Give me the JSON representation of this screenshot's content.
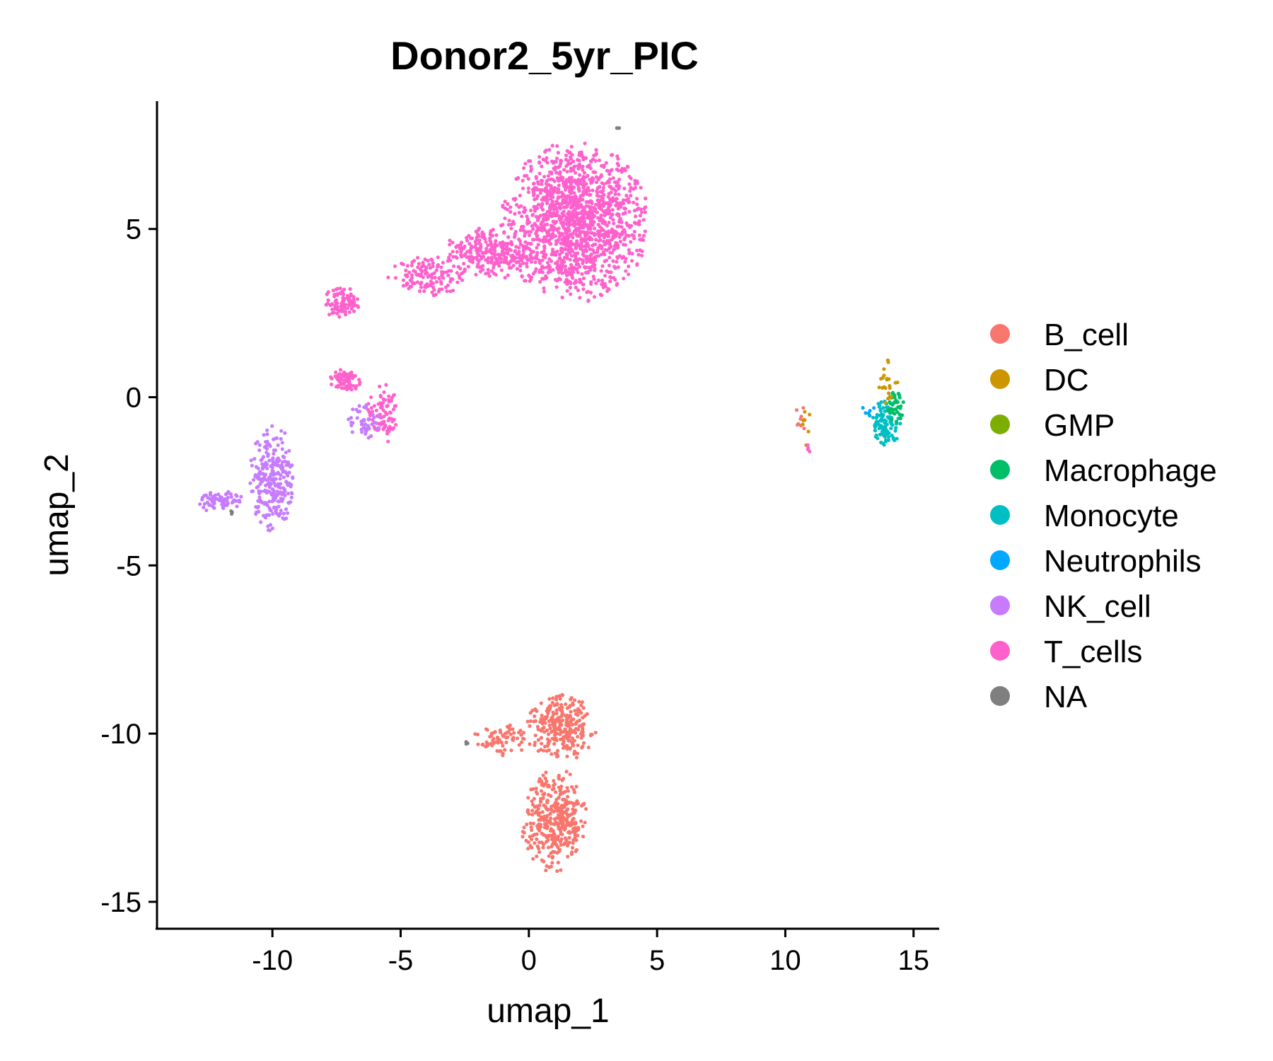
{
  "chart_data": {
    "type": "scatter",
    "title": "Donor2_5yr_PIC",
    "xlabel": "umap_1",
    "ylabel": "umap_2",
    "xlim": [
      -14.5,
      16.0
    ],
    "ylim": [
      -15.8,
      8.8
    ],
    "xticks": [
      -10,
      -5,
      0,
      5,
      10,
      15
    ],
    "yticks": [
      5,
      0,
      -5,
      -10,
      -15
    ],
    "xtick_labels": [
      "-10",
      "-5",
      "0",
      "5",
      "10",
      "15"
    ],
    "ytick_labels": [
      "5",
      "0",
      "-5",
      "-10",
      "-15"
    ],
    "grid": false,
    "legend_position": "right",
    "legend": [
      {
        "name": "B_cell",
        "color": "#F8766D"
      },
      {
        "name": "DC",
        "color": "#CD9600"
      },
      {
        "name": "GMP",
        "color": "#7CAE00"
      },
      {
        "name": "Macrophage",
        "color": "#00BE67"
      },
      {
        "name": "Monocyte",
        "color": "#00BFC4"
      },
      {
        "name": "Neutrophils",
        "color": "#00A9FF"
      },
      {
        "name": "NK_cell",
        "color": "#C77CFF"
      },
      {
        "name": "T_cells",
        "color": "#FF61CC"
      },
      {
        "name": "NA",
        "color": "#7F7F7F"
      }
    ],
    "clusters": [
      {
        "label": "T_cells",
        "cx": 1.8,
        "cy": 5.2,
        "rx": 2.9,
        "ry": 2.4,
        "n": 1400
      },
      {
        "label": "T_cells",
        "cx": -1.5,
        "cy": 4.3,
        "rx": 1.8,
        "ry": 0.8,
        "n": 260
      },
      {
        "label": "T_cells",
        "cx": -4.0,
        "cy": 3.6,
        "rx": 1.5,
        "ry": 0.6,
        "n": 130
      },
      {
        "label": "T_cells",
        "cx": -7.3,
        "cy": 2.8,
        "rx": 0.7,
        "ry": 0.5,
        "n": 90
      },
      {
        "label": "T_cells",
        "cx": -7.2,
        "cy": 0.5,
        "rx": 0.7,
        "ry": 0.4,
        "n": 70
      },
      {
        "label": "T_cells",
        "cx": -5.7,
        "cy": -0.5,
        "rx": 0.6,
        "ry": 0.9,
        "n": 80
      },
      {
        "label": "NK_cell",
        "cx": -6.4,
        "cy": -0.7,
        "rx": 0.7,
        "ry": 0.6,
        "n": 45
      },
      {
        "label": "NK_cell",
        "cx": -10.0,
        "cy": -2.4,
        "rx": 0.9,
        "ry": 1.6,
        "n": 260
      },
      {
        "label": "NK_cell",
        "cx": -12.0,
        "cy": -3.1,
        "rx": 0.9,
        "ry": 0.35,
        "n": 70
      },
      {
        "label": "B_cell",
        "cx": 1.3,
        "cy": -9.8,
        "rx": 1.4,
        "ry": 1.0,
        "n": 260
      },
      {
        "label": "B_cell",
        "cx": 1.0,
        "cy": -12.6,
        "rx": 1.3,
        "ry": 1.6,
        "n": 360
      },
      {
        "label": "B_cell",
        "cx": -1.0,
        "cy": -10.2,
        "rx": 1.2,
        "ry": 0.5,
        "n": 70
      },
      {
        "label": "B_cell",
        "cx": 10.6,
        "cy": -0.6,
        "rx": 0.2,
        "ry": 0.5,
        "n": 8
      },
      {
        "label": "DC",
        "cx": 10.8,
        "cy": -0.9,
        "rx": 0.2,
        "ry": 0.6,
        "n": 8
      },
      {
        "label": "T_cells",
        "cx": 10.9,
        "cy": -1.5,
        "rx": 0.1,
        "ry": 0.2,
        "n": 4
      },
      {
        "label": "Monocyte",
        "cx": 13.9,
        "cy": -0.8,
        "rx": 0.6,
        "ry": 0.7,
        "n": 95
      },
      {
        "label": "Macrophage",
        "cx": 14.3,
        "cy": -0.3,
        "rx": 0.35,
        "ry": 0.5,
        "n": 40
      },
      {
        "label": "DC",
        "cx": 14.0,
        "cy": 0.4,
        "rx": 0.4,
        "ry": 0.7,
        "n": 22
      },
      {
        "label": "Neutrophils",
        "cx": 13.2,
        "cy": -0.4,
        "rx": 0.3,
        "ry": 0.2,
        "n": 6
      },
      {
        "label": "NA",
        "cx": -11.6,
        "cy": -3.4,
        "rx": 0.15,
        "ry": 0.1,
        "n": 3
      },
      {
        "label": "NA",
        "cx": -2.4,
        "cy": -10.3,
        "rx": 0.1,
        "ry": 0.1,
        "n": 3
      },
      {
        "label": "NA",
        "cx": 3.5,
        "cy": 8.0,
        "rx": 0.1,
        "ry": 0.05,
        "n": 2
      }
    ]
  }
}
